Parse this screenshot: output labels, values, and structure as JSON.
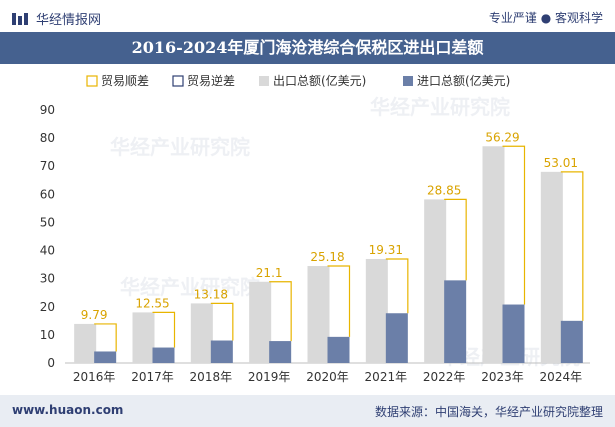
{
  "header": {
    "brand_name": "华经情报网",
    "tagline": "专业严谨 ● 客观科学"
  },
  "footer": {
    "website": "www.huaon.com",
    "source": "数据来源：中国海关，华经产业研究院整理"
  },
  "watermark": "华经产业研究院",
  "colors": {
    "title_bg": "#45618f",
    "export": "#d9d9d9",
    "import": "#6b7fa8",
    "surplus": "#e8b500",
    "deficit": "#2f3f73",
    "label": "#d9a300"
  },
  "chart_data": {
    "type": "bar",
    "title": "2016-2024年厦门海沧港综合保税区进出口差额",
    "categories": [
      "2016年",
      "2017年",
      "2018年",
      "2019年",
      "2020年",
      "2021年",
      "2022年",
      "2023年",
      "2024年"
    ],
    "series": [
      {
        "name": "出口总额(亿美元)",
        "values": [
          13.9,
          18.0,
          21.2,
          28.9,
          34.5,
          37.0,
          58.2,
          77.1,
          68.0
        ]
      },
      {
        "name": "进口总额(亿美元)",
        "values": [
          4.1,
          5.5,
          8.0,
          7.8,
          9.3,
          17.7,
          29.4,
          20.8,
          15.0
        ]
      }
    ],
    "surplus": [
      9.79,
      12.55,
      13.18,
      21.1,
      25.18,
      19.31,
      28.85,
      56.29,
      53.01
    ],
    "surplus_labels": [
      "9.79",
      "12.55",
      "13.18",
      "21.1",
      "25.18",
      "19.31",
      "28.85",
      "56.29",
      "53.01"
    ],
    "legend": [
      "贸易顺差",
      "贸易逆差",
      "出口总额(亿美元)",
      "进口总额(亿美元)"
    ],
    "ylim": [
      0,
      90
    ],
    "yticks": [
      "0",
      "10",
      "20",
      "30",
      "40",
      "50",
      "60",
      "70",
      "80",
      "90"
    ],
    "xlabel": "",
    "ylabel": "",
    "legend_position": "top-center"
  }
}
